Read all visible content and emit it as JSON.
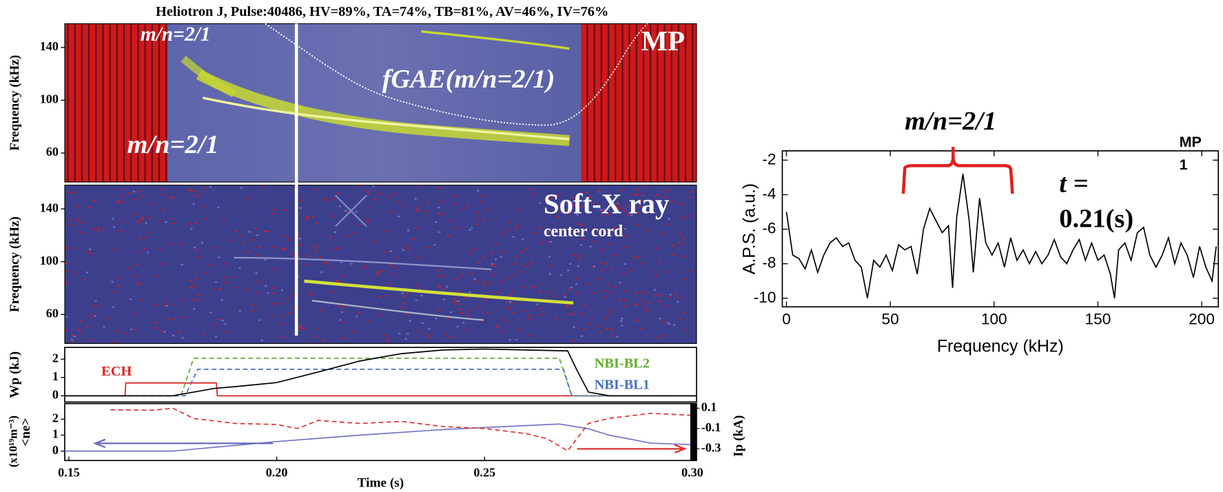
{
  "chart_data": [
    {
      "type": "spectrogram",
      "title": "Heliotron J, Pulse:40486, HV=89%, TA=74%, TB=81%, AV=46%, IV=76%",
      "ylabel": "Frequency (kHz)",
      "ylim": [
        38,
        158
      ],
      "yticks": [
        60,
        100,
        140
      ],
      "annotations": [
        "m/n=2/1",
        "fGAE(m/n=2/1)",
        "m/n=2/1",
        "MP"
      ]
    },
    {
      "type": "spectrogram",
      "ylabel": "Frequency (kHz)",
      "ylim": [
        38,
        158
      ],
      "yticks": [
        60,
        100,
        140
      ],
      "annotations": [
        "Soft-X ray",
        "center cord"
      ]
    },
    {
      "type": "line",
      "ylabel": "Wp (kJ)",
      "xlim": [
        0.149,
        0.301
      ],
      "ylim": [
        -0.34,
        2.64
      ],
      "yticks": [
        0,
        1,
        2
      ],
      "series": [
        {
          "name": "ECH",
          "color": "#e02020",
          "dash": false,
          "x": [
            0.149,
            0.1635,
            0.1637,
            0.1855,
            0.1857,
            0.301
          ],
          "values": [
            0,
            0,
            0.7,
            0.7,
            0,
            0
          ]
        },
        {
          "name": "NBI-BL2",
          "color": "#5fae2e",
          "dash": true,
          "x": [
            0.149,
            0.177,
            0.18,
            0.268,
            0.271,
            0.301
          ],
          "values": [
            0,
            0,
            2.05,
            2.05,
            0,
            0
          ]
        },
        {
          "name": "NBI-BL1",
          "color": "#4a6fc0",
          "dash": true,
          "x": [
            0.149,
            0.178,
            0.181,
            0.269,
            0.271,
            0.301
          ],
          "values": [
            0,
            0,
            1.45,
            1.45,
            0,
            0
          ]
        },
        {
          "color": "#000000",
          "dash": false,
          "x": [
            0.149,
            0.175,
            0.18,
            0.185,
            0.19,
            0.2,
            0.21,
            0.22,
            0.23,
            0.24,
            0.25,
            0.26,
            0.27,
            0.272,
            0.275,
            0.28,
            0.301
          ],
          "values": [
            0,
            0,
            0.2,
            0.4,
            0.5,
            0.72,
            1.3,
            1.9,
            2.3,
            2.5,
            2.55,
            2.5,
            2.45,
            1.5,
            0.2,
            0,
            0
          ]
        }
      ]
    },
    {
      "type": "line",
      "ylabel": "<ne>",
      "yunit": "(x10¹⁹m⁻³)",
      "y2label": "Ip (kA)",
      "xlabel": "Time (s)",
      "xlim": [
        0.149,
        0.301
      ],
      "xticks": [
        0.15,
        {
          "value": 0.2,
          "label": "0.20"
        },
        0.25,
        {
          "value": 0.3,
          "label": "0.30"
        }
      ],
      "ylim": [
        -0.59,
        2.98
      ],
      "yticks": [
        0,
        1,
        2
      ],
      "y2lim": [
        -0.415,
        0.146
      ],
      "y2ticks": [
        0.1,
        -0.1,
        -0.3
      ],
      "series": [
        {
          "color": "#7373c8",
          "dash": false,
          "x": [
            0.149,
            0.175,
            0.2,
            0.22,
            0.24,
            0.26,
            0.268,
            0.275,
            0.28,
            0.29,
            0.3
          ],
          "values": [
            0,
            0,
            0.6,
            1.0,
            1.35,
            1.6,
            1.7,
            1.4,
            1.0,
            0.5,
            0.4
          ]
        },
        {
          "color": "#e03030",
          "dash": true,
          "axis": "y2",
          "x": [
            0.16,
            0.17,
            0.175,
            0.18,
            0.19,
            0.2,
            0.205,
            0.21,
            0.22,
            0.23,
            0.24,
            0.25,
            0.26,
            0.265,
            0.27,
            0.275,
            0.28,
            0.29,
            0.3
          ],
          "values": [
            0.085,
            0.08,
            0.1,
            0.0,
            -0.05,
            -0.06,
            -0.1,
            -0.02,
            -0.05,
            -0.03,
            -0.08,
            -0.1,
            -0.15,
            -0.2,
            -0.32,
            -0.05,
            0.0,
            0.05,
            0.03
          ]
        }
      ]
    },
    {
      "type": "line",
      "ylabel": "A.P.S. (a.u.)",
      "xlabel": "Frequency (kHz)",
      "color": "#000000",
      "xlim": [
        -2,
        208
      ],
      "xticks": [
        0,
        50,
        100,
        150,
        200
      ],
      "ylim": [
        -10.5,
        -1.46
      ],
      "yticks": [
        -2,
        -4,
        -6,
        -8,
        -10
      ],
      "annotations": [
        "m/n=2/1",
        "MP",
        "1",
        "t =",
        "0.21(s)"
      ],
      "x": [
        0,
        3,
        6,
        9,
        12,
        15,
        18,
        21,
        24,
        27,
        30,
        33,
        36,
        39,
        42,
        45,
        48,
        51,
        54,
        57,
        60,
        63,
        66,
        69,
        72,
        75,
        78,
        80,
        82,
        85,
        88,
        90,
        93,
        96,
        99,
        102,
        105,
        108,
        111,
        114,
        117,
        120,
        123,
        126,
        129,
        132,
        135,
        138,
        141,
        144,
        147,
        150,
        153,
        156,
        158,
        160,
        163,
        166,
        169,
        172,
        175,
        178,
        181,
        184,
        187,
        190,
        193,
        196,
        199,
        202,
        205,
        207
      ],
      "values": [
        -5,
        -7.5,
        -7.7,
        -8.3,
        -7.2,
        -8.5,
        -7.5,
        -6.8,
        -6.5,
        -7.0,
        -6.8,
        -7.8,
        -8.2,
        -10.0,
        -7.8,
        -8.2,
        -7.5,
        -8.4,
        -6.9,
        -7.2,
        -7.0,
        -8.6,
        -6.0,
        -4.8,
        -5.5,
        -6.2,
        -5.8,
        -9.4,
        -5.3,
        -2.8,
        -5.5,
        -8.5,
        -4.2,
        -6.8,
        -7.5,
        -6.8,
        -8.2,
        -6.5,
        -7.8,
        -7.2,
        -8.0,
        -7.3,
        -8.0,
        -7.5,
        -6.6,
        -7.6,
        -8.0,
        -7.2,
        -6.6,
        -7.8,
        -6.8,
        -7.8,
        -7.5,
        -8.6,
        -10.0,
        -7.2,
        -6.8,
        -7.8,
        -6.2,
        -5.9,
        -7.5,
        -8.2,
        -7.5,
        -6.5,
        -8.0,
        -6.8,
        -7.5,
        -8.8,
        -7.0,
        -8.2,
        -9.0,
        -7.0
      ]
    }
  ]
}
